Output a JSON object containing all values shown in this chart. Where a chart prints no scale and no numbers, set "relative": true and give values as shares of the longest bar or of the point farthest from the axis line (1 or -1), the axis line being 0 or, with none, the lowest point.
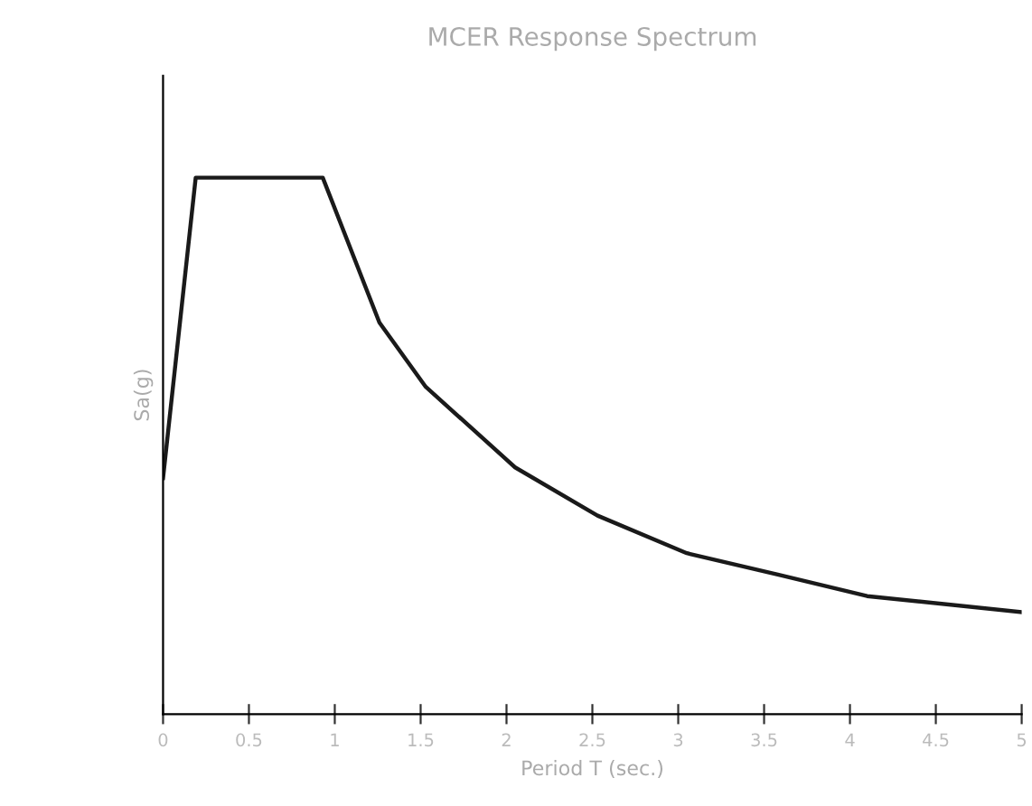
{
  "chart_data": {
    "type": "line",
    "title": "MCER Response Spectrum",
    "xlabel": "Period T (sec.)",
    "ylabel": "Sa(g)",
    "x": [
      0,
      0.19,
      0.93,
      1.26,
      1.53,
      2.05,
      2.53,
      3.05,
      3.58,
      4.1,
      5.0
    ],
    "series": [
      {
        "color": "#1a1a1a",
        "values": [
          0.44,
          1,
          1,
          0.73,
          0.61,
          0.46,
          0.37,
          0.3,
          0.26,
          0.22,
          0.19
        ]
      }
    ],
    "relative": true,
    "xlim": [
      0,
      5
    ],
    "xticks": [
      0,
      0.5,
      1,
      1.5,
      2,
      2.5,
      3,
      3.5,
      4,
      4.5,
      5
    ],
    "grid": false,
    "legend": false,
    "marker": "none",
    "line_style": "solid"
  }
}
